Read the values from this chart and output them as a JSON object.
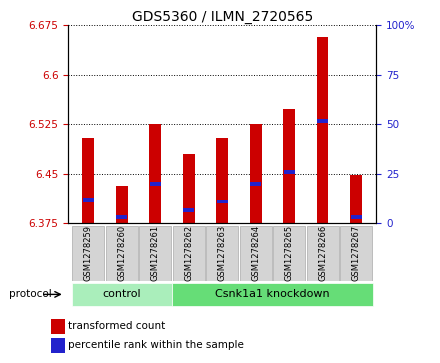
{
  "title": "GDS5360 / ILMN_2720565",
  "samples": [
    "GSM1278259",
    "GSM1278260",
    "GSM1278261",
    "GSM1278262",
    "GSM1278263",
    "GSM1278264",
    "GSM1278265",
    "GSM1278266",
    "GSM1278267"
  ],
  "red_values": [
    6.505,
    6.432,
    6.525,
    6.48,
    6.505,
    6.525,
    6.548,
    6.658,
    6.448
  ],
  "blue_values": [
    6.41,
    6.384,
    6.435,
    6.395,
    6.408,
    6.435,
    6.452,
    6.53,
    6.384
  ],
  "bar_bottom": 6.375,
  "ylim": [
    6.375,
    6.675
  ],
  "yticks_left": [
    6.375,
    6.45,
    6.525,
    6.6,
    6.675
  ],
  "yticks_right": [
    0,
    25,
    50,
    75,
    100
  ],
  "control_samples": 3,
  "control_label": "control",
  "knockdown_label": "Csnk1a1 knockdown",
  "protocol_label": "protocol",
  "legend_red": "transformed count",
  "legend_blue": "percentile rank within the sample",
  "bar_color": "#cc0000",
  "blue_color": "#2222cc",
  "control_bg": "#aaeebb",
  "knockdown_bg": "#66dd77",
  "sample_box_bg": "#d4d4d4",
  "bar_width": 0.35,
  "title_fontsize": 10,
  "tick_fontsize": 7.5,
  "label_fontsize": 8
}
